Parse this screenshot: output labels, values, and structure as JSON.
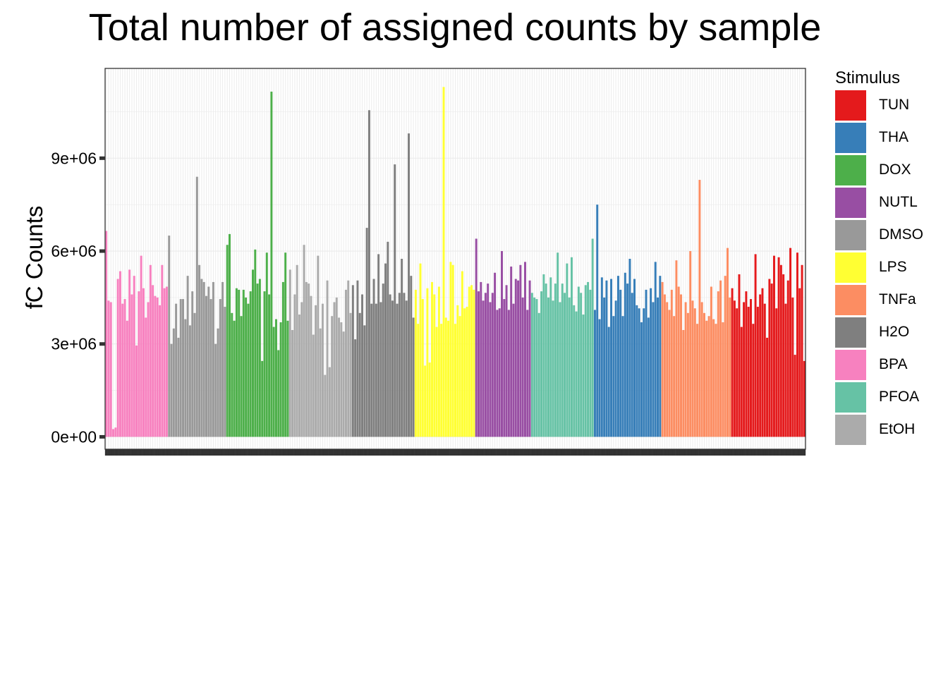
{
  "chart_data": {
    "type": "bar",
    "title": "Total number of assigned counts by sample",
    "xlabel": "",
    "ylabel": "fC Counts",
    "ylim": [
      -400000,
      11900000
    ],
    "y_ticks": [
      0,
      3000000,
      6000000,
      9000000
    ],
    "y_tick_labels": [
      "0e+00",
      "3e+06",
      "6e+06",
      "9e+06"
    ],
    "grid": true,
    "legend_position": "right",
    "legend_title": "Stimulus",
    "groups": [
      {
        "name": "BPA",
        "color": "#F781BF",
        "values": [
          6650000,
          4400000,
          4350000,
          250000,
          300000,
          5100000,
          5350000,
          4300000,
          4450000,
          3750000,
          5400000,
          4600000,
          5200000,
          2950000,
          4700000,
          5850000,
          4800000,
          3850000,
          4350000,
          5550000,
          4900000,
          4550000,
          4500000,
          4250000,
          5550000,
          4800000,
          4850000
        ]
      },
      {
        "name": "DMSO",
        "color": "#999999",
        "values": [
          6500000,
          3000000,
          3500000,
          4300000,
          3200000,
          4450000,
          4450000,
          3800000,
          5200000,
          3600000,
          4700000,
          4000000,
          8400000,
          5550000,
          5100000,
          5000000,
          4550000,
          4850000,
          4450000,
          5000000,
          3000000,
          3500000,
          4450000,
          5000000,
          4200000
        ]
      },
      {
        "name": "DOX",
        "color": "#4DAF4A",
        "values": [
          6200000,
          6550000,
          4000000,
          3750000,
          4800000,
          4750000,
          3900000,
          4750000,
          4500000,
          4300000,
          4700000,
          5400000,
          6050000,
          4950000,
          5100000,
          2450000,
          4700000,
          5950000,
          4600000,
          11150000,
          3550000,
          3800000,
          2800000,
          3700000,
          5000000,
          5950000,
          3750000
        ]
      },
      {
        "name": "EtOH",
        "color": "#ABABAB",
        "values": [
          5400000,
          3450000,
          4600000,
          5550000,
          3950000,
          4350000,
          6200000,
          5000000,
          4950000,
          4550000,
          3300000,
          4250000,
          5850000,
          3500000,
          4300000,
          2000000,
          5050000,
          2250000,
          3900000,
          4350000,
          4500000,
          3850000,
          3700000,
          3400000,
          4750000,
          5050000,
          4000000
        ]
      },
      {
        "name": "H2O",
        "color": "#7F7F7F",
        "values": [
          4900000,
          3150000,
          5050000,
          4000000,
          4600000,
          3600000,
          6750000,
          10550000,
          4300000,
          5100000,
          4300000,
          5900000,
          4350000,
          4950000,
          5600000,
          6300000,
          4600000,
          4400000,
          8800000,
          4300000,
          4650000,
          5750000,
          4650000,
          4400000,
          9800000,
          5200000,
          3850000
        ]
      },
      {
        "name": "LPS",
        "color": "#FFFF33",
        "values": [
          4750000,
          3650000,
          5600000,
          4450000,
          2300000,
          4800000,
          2400000,
          5000000,
          4600000,
          3550000,
          4850000,
          3650000,
          11300000,
          3850000,
          3750000,
          5650000,
          5550000,
          3650000,
          4250000,
          3900000,
          5350000,
          4150000,
          4200000,
          4850000,
          4900000,
          4750000
        ]
      },
      {
        "name": "NUTL",
        "color": "#984EA3",
        "values": [
          6400000,
          4700000,
          5000000,
          4400000,
          4650000,
          4950000,
          4350000,
          4650000,
          5300000,
          4100000,
          4150000,
          6000000,
          4450000,
          4900000,
          4100000,
          5500000,
          4300000,
          5100000,
          5050000,
          5550000,
          4500000,
          5650000,
          4100000,
          5050000
        ]
      },
      {
        "name": "PFOA",
        "color": "#66C2A5",
        "values": [
          4650000,
          4500000,
          4450000,
          4000000,
          4700000,
          5250000,
          4950000,
          4500000,
          5150000,
          4400000,
          4950000,
          5950000,
          4350000,
          4950000,
          4650000,
          5600000,
          4500000,
          5800000,
          4250000,
          4050000,
          4850000,
          4650000,
          3950000,
          4900000,
          5000000,
          4750000,
          6400000
        ]
      },
      {
        "name": "THA",
        "color": "#377EB8",
        "values": [
          4100000,
          7500000,
          3800000,
          5150000,
          4500000,
          5050000,
          3550000,
          5100000,
          3900000,
          4400000,
          5200000,
          4750000,
          3900000,
          5300000,
          4950000,
          5750000,
          4650000,
          5100000,
          4250000,
          4150000,
          3700000,
          4150000,
          4750000,
          3850000,
          4800000,
          4350000,
          5650000,
          4500000,
          5200000
        ]
      },
      {
        "name": "TNFa",
        "color": "#FC8D62",
        "values": [
          5000000,
          4600000,
          4350000,
          4100000,
          4750000,
          3900000,
          5700000,
          4850000,
          4600000,
          3450000,
          4350000,
          4000000,
          6000000,
          4400000,
          4150000,
          3650000,
          8300000,
          4350000,
          4000000,
          3750000,
          3900000,
          4850000,
          3800000,
          3650000,
          4700000,
          5050000,
          3700000,
          5200000,
          6100000,
          4500000
        ]
      },
      {
        "name": "TUN",
        "color": "#E41A1C",
        "values": [
          4800000,
          4400000,
          4150000,
          5250000,
          3550000,
          4350000,
          4700000,
          4200000,
          4450000,
          3650000,
          5900000,
          4200000,
          4600000,
          4800000,
          4300000,
          3200000,
          5100000,
          4950000,
          5850000,
          4150000,
          5800000,
          5550000,
          5250000,
          4300000,
          5050000,
          6100000,
          4500000,
          2650000,
          5950000,
          4800000,
          5550000,
          2450000
        ]
      }
    ],
    "legend_order": [
      "TUN",
      "THA",
      "DOX",
      "NUTL",
      "DMSO",
      "LPS",
      "TNFa",
      "H2O",
      "BPA",
      "PFOA",
      "EtOH"
    ],
    "legend_colors": {
      "TUN": "#E41A1C",
      "THA": "#377EB8",
      "DOX": "#4DAF4A",
      "NUTL": "#984EA3",
      "DMSO": "#999999",
      "LPS": "#FFFF33",
      "TNFa": "#FC8D62",
      "H2O": "#7F7F7F",
      "BPA": "#F781BF",
      "PFOA": "#66C2A5",
      "EtOH": "#ABABAB"
    }
  }
}
